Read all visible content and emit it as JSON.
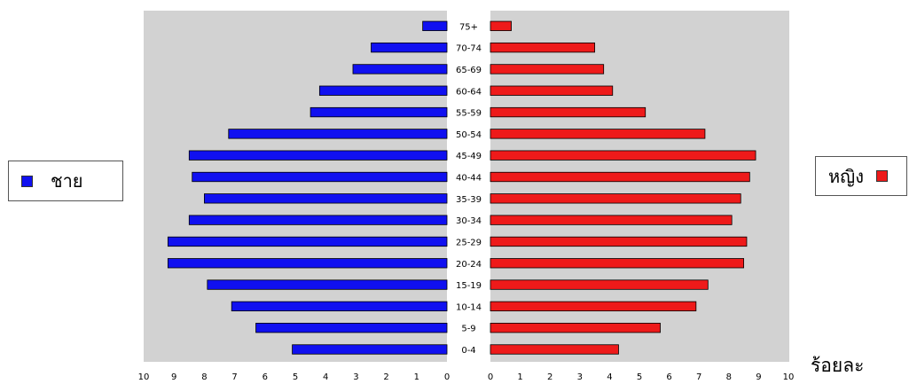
{
  "chart_data": {
    "type": "bar",
    "orientation": "horizontal",
    "layout": "population-pyramid",
    "categories": [
      "0-4",
      "5-9",
      "10-14",
      "15-19",
      "20-24",
      "25-29",
      "30-34",
      "35-39",
      "40-44",
      "45-49",
      "50-54",
      "55-59",
      "60-64",
      "65-69",
      "70-74",
      "75+"
    ],
    "series": [
      {
        "name": "ชาย",
        "side": "left",
        "color": "#1010f0",
        "values": [
          5.1,
          6.3,
          7.1,
          7.9,
          9.2,
          9.2,
          8.5,
          8.0,
          8.4,
          8.5,
          7.2,
          4.5,
          4.2,
          3.1,
          2.5,
          0.8
        ]
      },
      {
        "name": "หญิง",
        "side": "right",
        "color": "#ee1a1a",
        "values": [
          4.3,
          5.7,
          6.9,
          7.3,
          8.5,
          8.6,
          8.1,
          8.4,
          8.7,
          8.9,
          7.2,
          5.2,
          4.1,
          3.8,
          3.5,
          0.7
        ]
      }
    ],
    "xlim": [
      0,
      10
    ],
    "xticks": [
      "0",
      "1",
      "2",
      "3",
      "4",
      "5",
      "6",
      "7",
      "8",
      "9",
      "10"
    ],
    "xlabel": "ร้อยละ",
    "plot_background": "#d2d2d2",
    "grid": false,
    "legend_placement": "left and right"
  },
  "legend": {
    "male_label": "ชาย",
    "female_label": "หญิง",
    "male_color": "#1010f0",
    "female_color": "#ee1a1a"
  },
  "unit_label": "ร้อยละ"
}
